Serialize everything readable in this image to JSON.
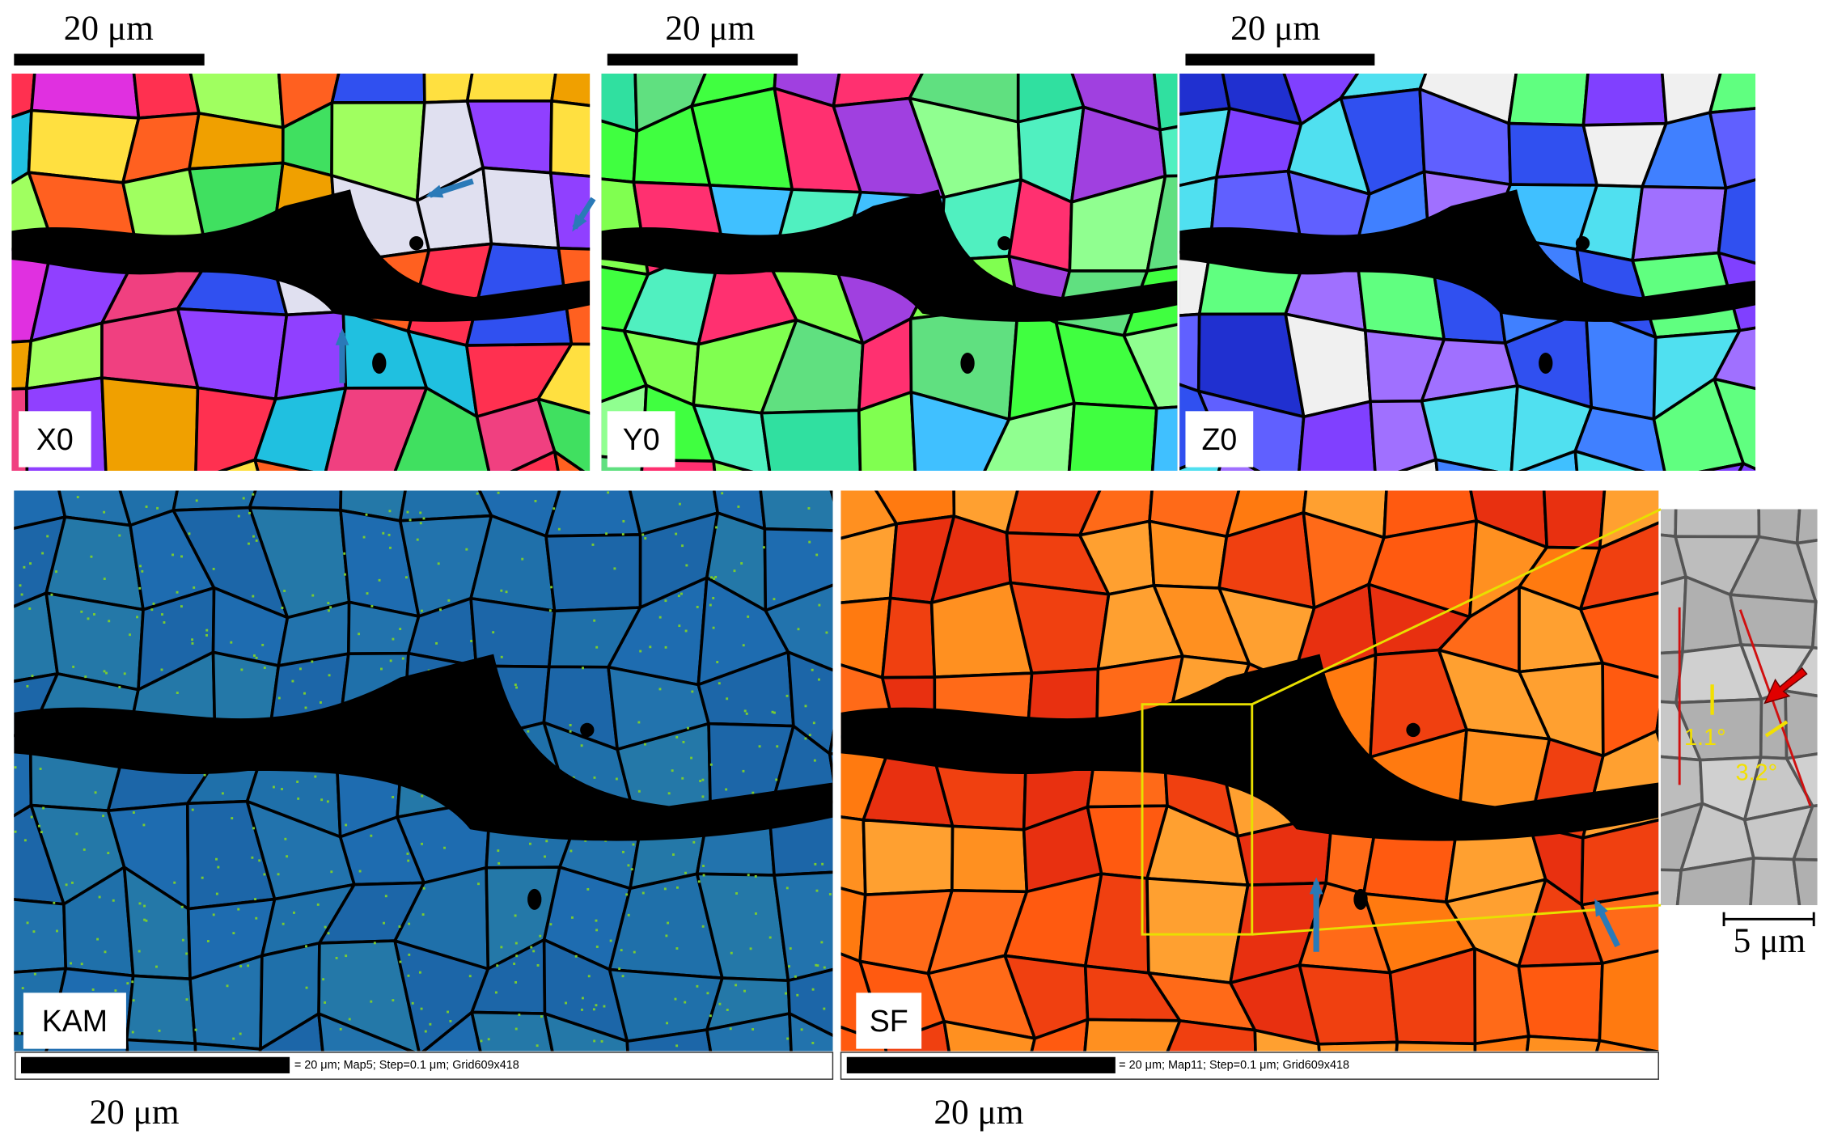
{
  "top_panels": [
    {
      "scale_label": "20 μm",
      "label": "X0"
    },
    {
      "scale_label": "20 μm",
      "label": "Y0"
    },
    {
      "scale_label": "20 μm",
      "label": "Z0"
    }
  ],
  "bottom_panels": [
    {
      "label": "KAM",
      "scale_info": "= 20 μm; Map5; Step=0.1 μm; Grid609x418",
      "scale_label": "20 μm"
    },
    {
      "label": "SF",
      "scale_info": "= 20 μm; Map11; Step=0.1 μm; Grid609x418",
      "scale_label": "20 μm"
    }
  ],
  "inset": {
    "angles": [
      "1.1°",
      "3.2°"
    ],
    "scale_label": "5 μm"
  }
}
